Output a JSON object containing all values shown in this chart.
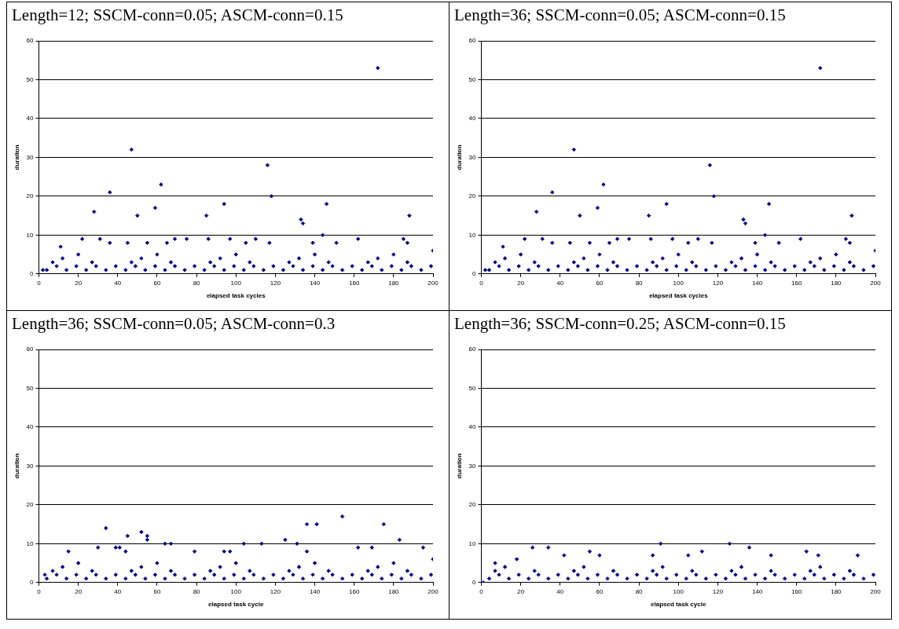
{
  "chart_data": [
    {
      "type": "scatter",
      "title": "Length=12; SSCM-conn=0.05; ASCM-conn=0.15",
      "xlabel": "elapsed task cycles",
      "ylabel": "duration",
      "xlim": [
        0,
        200
      ],
      "xticks": [
        0,
        20,
        40,
        60,
        80,
        100,
        120,
        140,
        160,
        180,
        200
      ],
      "ylim": [
        0,
        60
      ],
      "yticks": [
        0,
        10,
        20,
        30,
        40,
        50,
        60
      ],
      "grid": "y",
      "marker": "diamond",
      "series": [
        {
          "color": "#000080",
          "x": [
            2,
            28,
            36,
            47,
            50,
            59,
            62,
            85,
            94,
            116,
            118,
            133,
            134,
            144,
            146,
            172,
            188,
            22,
            31,
            69,
            86,
            97,
            110,
            162,
            185,
            75,
            11,
            36,
            45,
            55,
            65,
            105,
            139,
            151,
            187,
            117,
            200,
            4,
            14,
            24,
            34,
            44,
            54,
            64,
            74,
            84,
            94,
            104,
            114,
            124,
            134,
            144,
            154,
            164,
            174,
            184,
            194,
            9,
            19,
            29,
            39,
            49,
            59,
            69,
            79,
            89,
            99,
            109,
            119,
            129,
            139,
            149,
            159,
            169,
            179,
            189,
            199,
            7,
            27,
            47,
            67,
            87,
            107,
            127,
            147,
            167,
            187,
            12,
            52,
            92,
            132,
            172,
            20,
            60,
            100,
            140,
            180
          ],
          "values": [
            1,
            16,
            21,
            32,
            15,
            17,
            23,
            15,
            18,
            28,
            20,
            14,
            13,
            10,
            18,
            53,
            15,
            9,
            9,
            9,
            9,
            9,
            9,
            9,
            9,
            9,
            7,
            8,
            8,
            8,
            8,
            8,
            8,
            8,
            8,
            8,
            6,
            1,
            1,
            1,
            1,
            1,
            1,
            1,
            1,
            1,
            1,
            1,
            1,
            1,
            1,
            1,
            1,
            1,
            1,
            1,
            1,
            2,
            2,
            2,
            2,
            2,
            2,
            2,
            2,
            2,
            2,
            2,
            2,
            2,
            2,
            2,
            2,
            2,
            2,
            2,
            2,
            3,
            3,
            3,
            3,
            3,
            3,
            3,
            3,
            3,
            3,
            4,
            4,
            4,
            4,
            4,
            5,
            5,
            5,
            5,
            5
          ]
        }
      ]
    },
    {
      "type": "scatter",
      "title": "Length=36; SSCM-conn=0.05; ASCM-conn=0.15",
      "xlabel": "elapsed task cycles",
      "ylabel": "duration",
      "xlim": [
        0,
        200
      ],
      "xticks": [
        0,
        20,
        40,
        60,
        80,
        100,
        120,
        140,
        160,
        180,
        200
      ],
      "ylim": [
        0,
        60
      ],
      "yticks": [
        0,
        10,
        20,
        30,
        40,
        50,
        60
      ],
      "grid": "y",
      "marker": "diamond",
      "series": [
        {
          "color": "#000080",
          "x": [
            2,
            28,
            36,
            47,
            50,
            59,
            62,
            85,
            94,
            116,
            118,
            133,
            134,
            144,
            146,
            172,
            188,
            22,
            31,
            69,
            86,
            97,
            110,
            162,
            185,
            75,
            11,
            36,
            45,
            55,
            65,
            105,
            139,
            151,
            187,
            117,
            200,
            4,
            14,
            24,
            34,
            44,
            54,
            64,
            74,
            84,
            94,
            104,
            114,
            124,
            134,
            144,
            154,
            164,
            174,
            184,
            194,
            9,
            19,
            29,
            39,
            49,
            59,
            69,
            79,
            89,
            99,
            109,
            119,
            129,
            139,
            149,
            159,
            169,
            179,
            189,
            199,
            7,
            27,
            47,
            67,
            87,
            107,
            127,
            147,
            167,
            187,
            12,
            52,
            92,
            132,
            172,
            20,
            60,
            100,
            140,
            180
          ],
          "values": [
            1,
            16,
            21,
            32,
            15,
            17,
            23,
            15,
            18,
            28,
            20,
            14,
            13,
            10,
            18,
            53,
            15,
            9,
            9,
            9,
            9,
            9,
            9,
            9,
            9,
            9,
            7,
            8,
            8,
            8,
            8,
            8,
            8,
            8,
            8,
            8,
            6,
            1,
            1,
            1,
            1,
            1,
            1,
            1,
            1,
            1,
            1,
            1,
            1,
            1,
            1,
            1,
            1,
            1,
            1,
            1,
            1,
            2,
            2,
            2,
            2,
            2,
            2,
            2,
            2,
            2,
            2,
            2,
            2,
            2,
            2,
            2,
            2,
            2,
            2,
            2,
            2,
            3,
            3,
            3,
            3,
            3,
            3,
            3,
            3,
            3,
            3,
            4,
            4,
            4,
            4,
            4,
            5,
            5,
            5,
            5,
            5
          ]
        }
      ]
    },
    {
      "type": "scatter",
      "title": "Length=36; SSCM-conn=0.05; ASCM-conn=0.3",
      "xlabel": "elapsed task cycle",
      "ylabel": "duration",
      "xlim": [
        0,
        200
      ],
      "xticks": [
        0,
        20,
        40,
        60,
        80,
        100,
        120,
        140,
        160,
        180,
        200
      ],
      "ylim": [
        0,
        60
      ],
      "yticks": [
        0,
        10,
        20,
        30,
        40,
        50,
        60
      ],
      "grid": "y",
      "marker": "diamond",
      "series": [
        {
          "color": "#000080",
          "x": [
            34,
            45,
            52,
            55,
            55,
            64,
            67,
            104,
            113,
            125,
            131,
            136,
            141,
            154,
            162,
            169,
            175,
            183,
            30,
            39,
            41,
            15,
            44,
            79,
            94,
            97,
            195,
            136,
            200,
            3,
            4,
            14,
            24,
            34,
            44,
            54,
            64,
            74,
            84,
            94,
            104,
            114,
            124,
            134,
            144,
            154,
            164,
            174,
            184,
            194,
            9,
            19,
            29,
            39,
            49,
            59,
            69,
            79,
            89,
            99,
            109,
            119,
            129,
            139,
            149,
            159,
            169,
            179,
            189,
            199,
            7,
            27,
            47,
            67,
            87,
            107,
            127,
            147,
            167,
            187,
            12,
            52,
            92,
            132,
            172,
            20,
            60,
            100,
            140,
            180
          ],
          "values": [
            14,
            12,
            13,
            12,
            11,
            10,
            10,
            10,
            10,
            11,
            10,
            15,
            15,
            17,
            9,
            9,
            15,
            11,
            9,
            9,
            9,
            8,
            8,
            8,
            8,
            8,
            9,
            8,
            6,
            2,
            1,
            1,
            1,
            1,
            1,
            1,
            1,
            1,
            1,
            1,
            1,
            1,
            1,
            1,
            1,
            1,
            1,
            1,
            1,
            1,
            2,
            2,
            2,
            2,
            2,
            2,
            2,
            2,
            2,
            2,
            2,
            2,
            2,
            2,
            2,
            2,
            2,
            2,
            2,
            2,
            3,
            3,
            3,
            3,
            3,
            3,
            3,
            3,
            3,
            3,
            4,
            4,
            4,
            4,
            4,
            5,
            5,
            5,
            5,
            5
          ]
        }
      ]
    },
    {
      "type": "scatter",
      "title": "Length=36; SSCM-conn=0.25; ASCM-conn=0.15",
      "xlabel": "elapsed task cycle",
      "ylabel": "duration",
      "xlim": [
        0,
        200
      ],
      "xticks": [
        0,
        20,
        40,
        60,
        80,
        100,
        120,
        140,
        160,
        180,
        200
      ],
      "ylim": [
        0,
        60
      ],
      "yticks": [
        0,
        10,
        20,
        30,
        40,
        50,
        60
      ],
      "grid": "y",
      "marker": "diamond",
      "series": [
        {
          "color": "#000080",
          "x": [
            26,
            34,
            91,
            126,
            136,
            55,
            112,
            165,
            7,
            18,
            42,
            60,
            87,
            105,
            147,
            171,
            191,
            1,
            4,
            14,
            24,
            34,
            44,
            54,
            64,
            74,
            84,
            94,
            104,
            114,
            124,
            134,
            144,
            154,
            164,
            174,
            184,
            194,
            9,
            19,
            29,
            39,
            49,
            59,
            69,
            79,
            89,
            99,
            109,
            119,
            129,
            139,
            149,
            159,
            169,
            179,
            189,
            199,
            7,
            27,
            47,
            67,
            87,
            107,
            127,
            147,
            167,
            187,
            12,
            52,
            92,
            132,
            172
          ],
          "values": [
            9,
            9,
            10,
            10,
            9,
            8,
            8,
            8,
            5,
            6,
            7,
            7,
            7,
            7,
            7,
            7,
            7,
            0,
            1,
            1,
            1,
            1,
            1,
            1,
            1,
            1,
            1,
            1,
            1,
            1,
            1,
            1,
            1,
            1,
            1,
            1,
            1,
            1,
            2,
            2,
            2,
            2,
            2,
            2,
            2,
            2,
            2,
            2,
            2,
            2,
            2,
            2,
            2,
            2,
            2,
            2,
            2,
            2,
            3,
            3,
            3,
            3,
            3,
            3,
            3,
            3,
            3,
            3,
            4,
            4,
            4,
            4,
            4
          ]
        }
      ]
    }
  ]
}
